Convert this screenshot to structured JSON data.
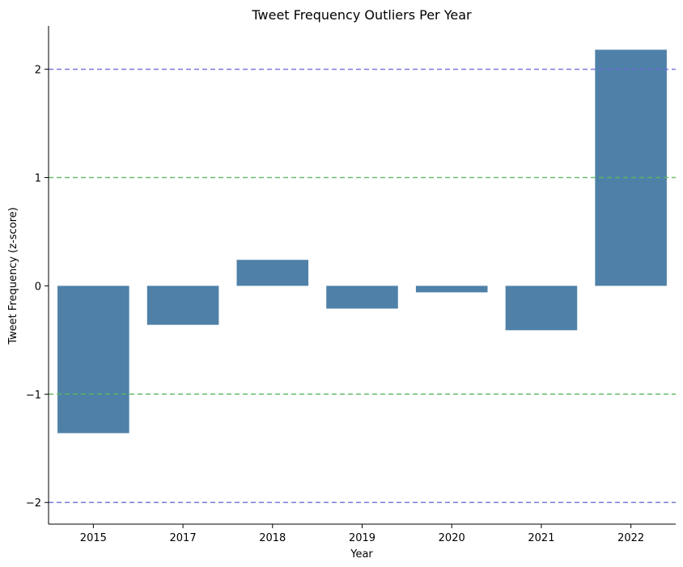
{
  "chart_data": {
    "type": "bar",
    "title": "Tweet Frequency Outliers Per Year",
    "xlabel": "Year",
    "ylabel": "Tweet Frequency (z-score)",
    "categories": [
      "2015",
      "2017",
      "2018",
      "2019",
      "2020",
      "2021",
      "2022"
    ],
    "values": [
      -1.36,
      -0.36,
      0.24,
      -0.21,
      -0.06,
      -0.41,
      2.18
    ],
    "ylim": [
      -2.2,
      2.4
    ],
    "yticks": [
      -2,
      -1,
      0,
      1,
      2
    ],
    "ytick_labels": [
      "−2",
      "−1",
      "0",
      "1",
      "2"
    ],
    "grid": false,
    "reference_lines": [
      {
        "y": 2,
        "color": "#6b6bdb",
        "style": "dashed"
      },
      {
        "y": -2,
        "color": "#6b6bdb",
        "style": "dashed"
      },
      {
        "y": 1,
        "color": "#5cb85c",
        "style": "dashed"
      },
      {
        "y": -1,
        "color": "#5cb85c",
        "style": "dashed"
      }
    ],
    "bar_color": "#4f81a8"
  }
}
